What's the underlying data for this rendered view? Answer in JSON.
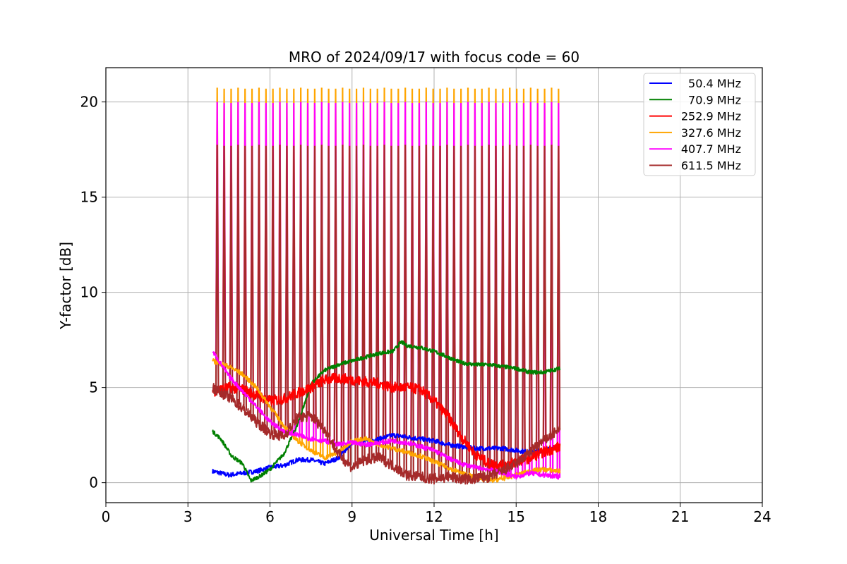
{
  "chart_data": {
    "type": "line",
    "title": "MRO of 2024/09/17 with focus code = 60",
    "xlabel": "Universal Time [h]",
    "ylabel": "Y-factor [dB]",
    "xlim": [
      0,
      24
    ],
    "ylim": [
      -1.05,
      21.8
    ],
    "xticks": [
      0,
      3,
      6,
      9,
      12,
      15,
      18,
      21,
      24
    ],
    "yticks": [
      0,
      5,
      10,
      15,
      20
    ],
    "grid": true,
    "legend_position": "top-right",
    "spikes": {
      "start": 4.07,
      "end": 16.55,
      "count": 50,
      "peaks": {
        "327.6 MHz": 20.7,
        "407.7 MHz": 19.95,
        "611.5 MHz": 17.7
      }
    },
    "series": [
      {
        "name": "50.4 MHz",
        "color": "#0000ff",
        "x": [
          3.9,
          4.5,
          5.0,
          5.5,
          6.0,
          6.5,
          7.0,
          7.5,
          8.0,
          8.5,
          9.0,
          9.5,
          10.0,
          10.5,
          11.0,
          11.5,
          12.0,
          12.5,
          13.0,
          13.5,
          14.0,
          14.5,
          15.0,
          15.5,
          16.0,
          16.6
        ],
        "y": [
          0.6,
          0.4,
          0.5,
          0.6,
          0.8,
          0.9,
          1.2,
          1.2,
          1.0,
          1.3,
          2.1,
          2.2,
          2.3,
          2.5,
          2.4,
          2.3,
          2.2,
          2.0,
          1.9,
          1.8,
          1.8,
          1.8,
          1.7,
          1.6,
          1.7,
          1.9
        ]
      },
      {
        "name": "70.9 MHz",
        "color": "#008000",
        "x": [
          3.9,
          4.2,
          4.6,
          5.0,
          5.3,
          5.7,
          6.0,
          6.5,
          7.0,
          7.5,
          8.0,
          8.5,
          9.0,
          9.5,
          10.0,
          10.5,
          10.8,
          11.0,
          11.5,
          12.0,
          12.5,
          13.0,
          13.5,
          14.0,
          14.5,
          15.0,
          15.5,
          16.0,
          16.6
        ],
        "y": [
          2.7,
          2.3,
          1.4,
          1.0,
          0.1,
          0.4,
          0.7,
          1.5,
          3.0,
          5.2,
          5.9,
          6.2,
          6.4,
          6.6,
          6.8,
          6.9,
          7.4,
          7.2,
          7.1,
          6.9,
          6.6,
          6.3,
          6.2,
          6.2,
          6.1,
          6.0,
          5.8,
          5.8,
          6.0
        ]
      },
      {
        "name": "252.9 MHz",
        "color": "#ff0000",
        "x": [
          3.9,
          4.5,
          5.0,
          5.5,
          6.0,
          6.5,
          7.0,
          7.5,
          8.0,
          8.5,
          9.0,
          9.5,
          10.0,
          10.5,
          11.0,
          11.5,
          12.0,
          12.5,
          13.0,
          13.5,
          14.0,
          14.5,
          15.0,
          15.5,
          16.0,
          16.6
        ],
        "y": [
          4.8,
          5.0,
          4.9,
          4.6,
          4.3,
          4.4,
          4.7,
          5.0,
          5.4,
          5.5,
          5.4,
          5.3,
          5.2,
          5.0,
          5.0,
          4.9,
          4.3,
          3.5,
          2.4,
          1.5,
          1.0,
          0.9,
          1.1,
          1.3,
          1.6,
          1.9
        ]
      },
      {
        "name": "327.6 MHz",
        "color": "#ffa500",
        "x": [
          3.9,
          4.5,
          5.0,
          5.5,
          6.0,
          6.5,
          7.0,
          7.5,
          8.0,
          8.5,
          9.0,
          9.5,
          10.0,
          10.5,
          11.0,
          11.5,
          12.0,
          12.5,
          13.0,
          13.5,
          14.0,
          14.5,
          15.0,
          15.5,
          16.0,
          16.6
        ],
        "y": [
          6.4,
          6.1,
          5.7,
          5.0,
          4.0,
          3.0,
          2.2,
          1.7,
          1.3,
          1.6,
          2.2,
          2.3,
          2.0,
          1.8,
          1.6,
          1.4,
          1.1,
          0.8,
          0.5,
          0.3,
          0.1,
          0.2,
          0.4,
          0.6,
          0.7,
          0.6
        ]
      },
      {
        "name": "407.7 MHz",
        "color": "#ff00ff",
        "x": [
          3.9,
          4.5,
          5.0,
          5.5,
          6.0,
          6.5,
          7.0,
          7.5,
          8.0,
          8.5,
          9.0,
          9.5,
          10.0,
          10.5,
          11.0,
          11.5,
          12.0,
          12.5,
          13.0,
          13.5,
          14.0,
          14.5,
          15.0,
          15.5,
          16.0,
          16.6
        ],
        "y": [
          6.9,
          5.6,
          4.8,
          4.0,
          3.2,
          2.7,
          2.5,
          2.3,
          2.2,
          2.0,
          2.1,
          2.0,
          2.1,
          2.2,
          2.1,
          1.9,
          1.7,
          1.3,
          1.0,
          0.8,
          0.7,
          0.5,
          0.3,
          0.5,
          0.4,
          0.3
        ]
      },
      {
        "name": "611.5 MHz",
        "color": "#a52a2a",
        "x": [
          3.9,
          4.5,
          5.0,
          5.5,
          6.0,
          6.5,
          7.0,
          7.5,
          8.0,
          8.5,
          9.0,
          9.5,
          10.0,
          10.5,
          11.0,
          11.5,
          12.0,
          12.5,
          13.0,
          13.5,
          14.0,
          14.5,
          15.0,
          15.5,
          16.0,
          16.6
        ],
        "y": [
          5.0,
          4.5,
          3.9,
          3.2,
          2.6,
          2.4,
          3.4,
          3.5,
          2.8,
          1.5,
          0.8,
          1.2,
          1.3,
          0.9,
          0.4,
          0.3,
          0.2,
          0.3,
          0.2,
          0.2,
          0.3,
          0.6,
          1.0,
          1.6,
          2.2,
          2.8
        ]
      }
    ]
  }
}
